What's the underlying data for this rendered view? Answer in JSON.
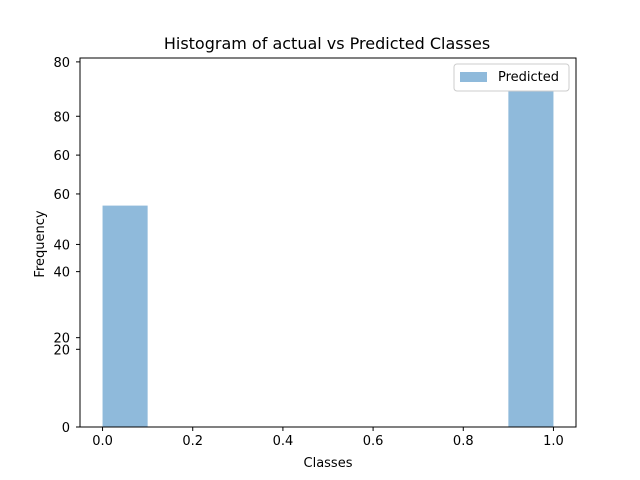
{
  "chart_data": {
    "type": "bar",
    "title": "Histogram of actual vs Predicted Classes",
    "xlabel": "Classes",
    "ylabel": "Frequency",
    "xlim": [
      -0.05,
      1.05
    ],
    "ylim": [
      0,
      95
    ],
    "x_ticks": [
      0.0,
      0.2,
      0.4,
      0.6,
      0.8,
      1.0
    ],
    "x_tick_labels": [
      "0.0",
      "0.2",
      "0.4",
      "0.6",
      "0.8",
      "1.0"
    ],
    "y_ticks_left": [
      0,
      20,
      40,
      60,
      80
    ],
    "y_tick_labels_left": [
      "0",
      "20",
      "40",
      "60",
      "80"
    ],
    "y_ticks_right_set": [
      0,
      20,
      40,
      60,
      80
    ],
    "y_ticks_second": [
      0,
      23,
      47,
      70,
      94
    ],
    "y_tick_labels_second": [
      "0",
      "20",
      "40",
      "60",
      "80"
    ],
    "legend": "top-right",
    "grid": false,
    "series": [
      {
        "name": "Predicted",
        "color": "#8fbadb",
        "bins": [
          {
            "x0": 0.0,
            "x1": 0.1,
            "value": 57
          },
          {
            "x0": 0.9,
            "x1": 1.0,
            "value": 90
          }
        ]
      }
    ]
  }
}
